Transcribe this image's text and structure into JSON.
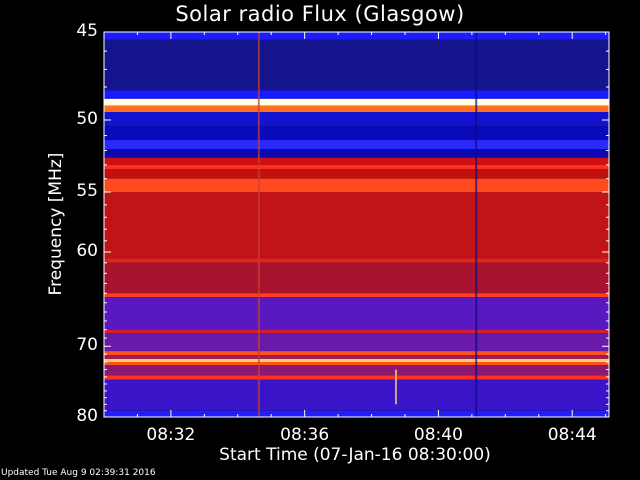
{
  "chart_data": {
    "type": "heatmap",
    "title": "Solar radio Flux (Glasgow)",
    "ylabel": "Frequency [MHz]",
    "xlabel": "Start Time (07-Jan-16 08:30:00)",
    "x_tick_labels": [
      "08:32",
      "08:36",
      "08:40",
      "08:44"
    ],
    "x_tick_values_min": [
      2,
      6,
      10,
      14
    ],
    "xlim_min": [
      0,
      15.1
    ],
    "y_tick_labels": [
      "45",
      "50",
      "55",
      "60",
      "70",
      "80"
    ],
    "y_tick_values_mhz": [
      45,
      50,
      55,
      60,
      70,
      80
    ],
    "ylim_mhz": [
      45,
      80
    ],
    "y_scale": "reciprocal",
    "bands": [
      {
        "f0": 45.0,
        "f1": 45.4,
        "color": "#1c1cff"
      },
      {
        "f0": 45.4,
        "f1": 48.2,
        "color": "#14148c"
      },
      {
        "f0": 48.2,
        "f1": 48.7,
        "color": "#1a1aff"
      },
      {
        "f0": 48.7,
        "f1": 49.1,
        "color": "#ffffe0"
      },
      {
        "f0": 49.1,
        "f1": 49.5,
        "color": "#ff7020"
      },
      {
        "f0": 49.5,
        "f1": 50.4,
        "color": "#1212d0"
      },
      {
        "f0": 50.4,
        "f1": 51.3,
        "color": "#0a0ab8"
      },
      {
        "f0": 51.3,
        "f1": 51.9,
        "color": "#2a2aff"
      },
      {
        "f0": 51.9,
        "f1": 52.5,
        "color": "#0a0ab0"
      },
      {
        "f0": 52.5,
        "f1": 53.0,
        "color": "#d01010"
      },
      {
        "f0": 53.0,
        "f1": 53.3,
        "color": "#ff3020"
      },
      {
        "f0": 53.3,
        "f1": 54.0,
        "color": "#c01010"
      },
      {
        "f0": 54.0,
        "f1": 55.0,
        "color": "#ff4a20"
      },
      {
        "f0": 55.0,
        "f1": 60.6,
        "color": "#c01418"
      },
      {
        "f0": 60.6,
        "f1": 61.0,
        "color": "#e02420"
      },
      {
        "f0": 61.0,
        "f1": 64.0,
        "color": "#a81430"
      },
      {
        "f0": 64.0,
        "f1": 64.4,
        "color": "#ff4020"
      },
      {
        "f0": 64.4,
        "f1": 68.0,
        "color": "#5a18c0"
      },
      {
        "f0": 68.0,
        "f1": 68.4,
        "color": "#d02030"
      },
      {
        "f0": 68.4,
        "f1": 70.6,
        "color": "#6a1aa8"
      },
      {
        "f0": 70.6,
        "f1": 71.1,
        "color": "#ff5020"
      },
      {
        "f0": 71.1,
        "f1": 71.6,
        "color": "#a01858"
      },
      {
        "f0": 71.6,
        "f1": 72.0,
        "color": "#ffd060"
      },
      {
        "f0": 72.0,
        "f1": 72.4,
        "color": "#ff5020"
      },
      {
        "f0": 72.4,
        "f1": 73.8,
        "color": "#8a1a70"
      },
      {
        "f0": 73.8,
        "f1": 74.4,
        "color": "#ff3020"
      },
      {
        "f0": 74.4,
        "f1": 79.0,
        "color": "#3a14c8"
      },
      {
        "f0": 79.0,
        "f1": 80.0,
        "color": "#2020ff"
      }
    ],
    "interference_events": [
      {
        "t_min": 4.6,
        "f0": 45.0,
        "f1": 80.0,
        "color": "#c84030"
      },
      {
        "t_min": 8.7,
        "f0": 73.0,
        "f1": 78.0,
        "color": "#ffe070"
      },
      {
        "t_min": 11.1,
        "f0": 45.0,
        "f1": 80.0,
        "color": "#0c0c80"
      }
    ],
    "colors": {
      "background": "#000000",
      "text": "#ffffff"
    }
  },
  "footer": "Updated Tue Aug  9 02:39:31 2016"
}
